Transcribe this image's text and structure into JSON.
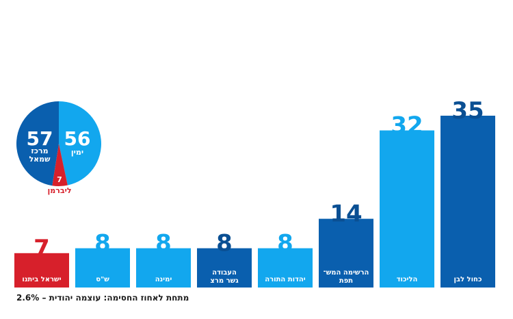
{
  "colors": {
    "dark_blue": "#0a5fae",
    "light_blue": "#12a7ee",
    "red": "#d7202b",
    "value_dark": "#0a4f93"
  },
  "chart_data": {
    "type": "bar",
    "ylim": [
      0,
      35
    ],
    "bars": [
      {
        "category": "כחול לבן",
        "value": 35,
        "color": "dark_blue",
        "label_lines": [
          "כחול לבן"
        ]
      },
      {
        "category": "הליכוד",
        "value": 32,
        "color": "light_blue",
        "label_lines": [
          "הליכוד"
        ]
      },
      {
        "category": "הרשימה המשותפת",
        "value": 14,
        "color": "dark_blue",
        "label_lines": [
          "הרשימה המש־",
          "תפת"
        ]
      },
      {
        "category": "יהדות התורה",
        "value": 8,
        "color": "light_blue",
        "label_lines": [
          "יהדות התורה"
        ]
      },
      {
        "category": "העבודה גשר מרצ",
        "value": 8,
        "color": "dark_blue",
        "label_lines": [
          "העבודה",
          "גשר מרצ"
        ]
      },
      {
        "category": "ימינה",
        "value": 8,
        "color": "light_blue",
        "label_lines": [
          "ימינה"
        ]
      },
      {
        "category": "ש\"ס",
        "value": 8,
        "color": "light_blue",
        "label_lines": [
          "ש\"ס"
        ]
      },
      {
        "category": "ישראל ביתנו",
        "value": 7,
        "color": "red",
        "label_lines": [
          "ישראל ביתנו"
        ]
      }
    ],
    "pie": {
      "type": "pie",
      "slices": [
        {
          "label": "ימין",
          "value": 56,
          "color": "light_blue",
          "label_lines": [
            "ימין"
          ]
        },
        {
          "label": "ליברמן",
          "value": 7,
          "color": "red",
          "label_lines": [
            "ליברמן"
          ]
        },
        {
          "label": "מרכז שמאל",
          "value": 57,
          "color": "dark_blue",
          "label_lines": [
            "מרכז",
            "שמאל"
          ]
        }
      ]
    }
  },
  "footnote": "מתחת לאחוז החסימה: עוצמה יהודית – 2.6%"
}
